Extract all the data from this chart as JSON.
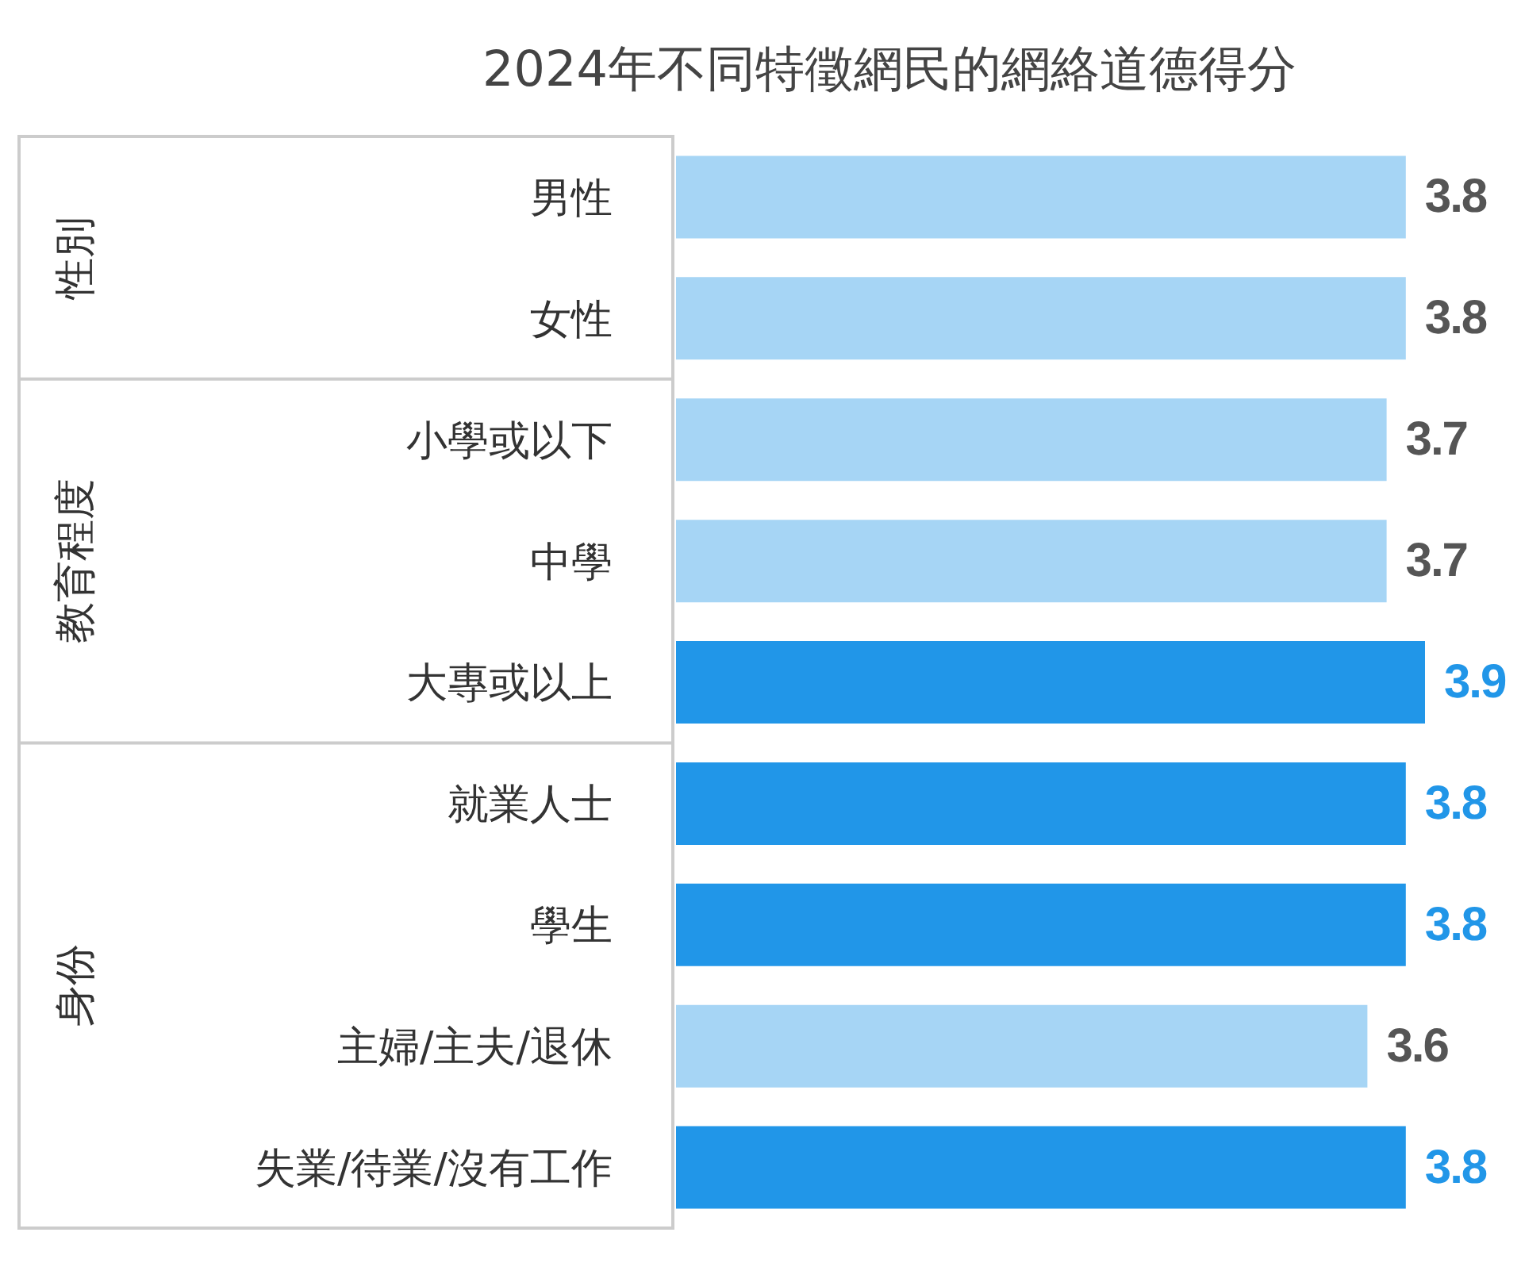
{
  "chart_data": {
    "type": "bar",
    "orientation": "horizontal",
    "title": "2024年不同特徵網民的網絡道德得分",
    "categories": [
      "男性",
      "女性",
      "小學或以下",
      "中學",
      "大專或以上",
      "就業人士",
      "學生",
      "主婦/主夫/退休",
      "失業/待業/沒有工作"
    ],
    "values": [
      3.8,
      3.8,
      3.7,
      3.7,
      3.9,
      3.8,
      3.8,
      3.6,
      3.8
    ],
    "colors": [
      "#a6d5f5",
      "#a6d5f5",
      "#a6d5f5",
      "#a6d5f5",
      "#2196e8",
      "#2196e8",
      "#2196e8",
      "#a6d5f5",
      "#2196e8"
    ],
    "tick_labels": "y",
    "data_labels": true,
    "grid": false,
    "legend": false,
    "annotations": [
      "性別",
      "教育程度",
      "身份"
    ]
  }
}
